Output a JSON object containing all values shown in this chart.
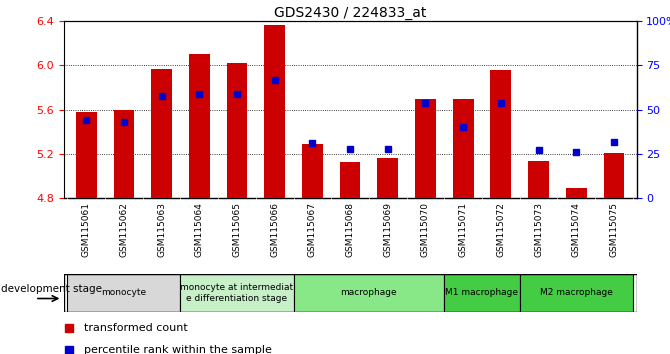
{
  "title": "GDS2430 / 224833_at",
  "samples": [
    "GSM115061",
    "GSM115062",
    "GSM115063",
    "GSM115064",
    "GSM115065",
    "GSM115066",
    "GSM115067",
    "GSM115068",
    "GSM115069",
    "GSM115070",
    "GSM115071",
    "GSM115072",
    "GSM115073",
    "GSM115074",
    "GSM115075"
  ],
  "red_values": [
    5.58,
    5.6,
    5.97,
    6.1,
    6.02,
    6.37,
    5.29,
    5.13,
    5.16,
    5.7,
    5.7,
    5.96,
    5.14,
    4.89,
    5.21
  ],
  "blue_values": [
    0.44,
    0.43,
    0.58,
    0.59,
    0.59,
    0.67,
    0.31,
    0.28,
    0.28,
    0.54,
    0.4,
    0.54,
    0.27,
    0.26,
    0.32
  ],
  "ymin": 4.8,
  "ymax": 6.4,
  "yticks_red": [
    4.8,
    5.2,
    5.6,
    6.0,
    6.4
  ],
  "yticks_blue_vals": [
    0.0,
    0.25,
    0.5,
    0.75,
    1.0
  ],
  "yticks_blue_labels": [
    "0",
    "25",
    "50",
    "75",
    "100%"
  ],
  "bar_color": "#CC0000",
  "dot_color": "#0000CC",
  "groups": [
    {
      "label": "monocyte",
      "start": 0,
      "end": 2,
      "color": "#d8d8d8"
    },
    {
      "label": "monocyte at intermediat\ne differentiation stage",
      "start": 3,
      "end": 5,
      "color": "#c8f0c8"
    },
    {
      "label": "macrophage",
      "start": 6,
      "end": 9,
      "color": "#88e888"
    },
    {
      "label": "M1 macrophage",
      "start": 10,
      "end": 11,
      "color": "#44cc44"
    },
    {
      "label": "M2 macrophage",
      "start": 12,
      "end": 14,
      "color": "#44cc44"
    }
  ],
  "dev_stage_label": "development stage",
  "legend_red": "transformed count",
  "legend_blue": "percentile rank within the sample",
  "xtick_bg": "#c8c8c8"
}
